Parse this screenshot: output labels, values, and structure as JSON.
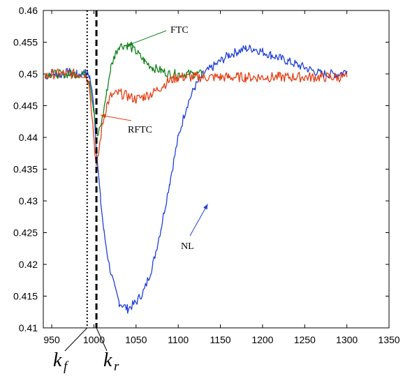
{
  "chart_data": {
    "type": "line",
    "title": "",
    "xlabel": "",
    "ylabel": "",
    "xlim": [
      940,
      1350
    ],
    "ylim": [
      0.41,
      0.46
    ],
    "x_ticks": [
      950,
      1000,
      1050,
      1100,
      1150,
      1200,
      1250,
      1300,
      1350
    ],
    "y_ticks": [
      0.41,
      0.415,
      0.42,
      0.425,
      0.43,
      0.435,
      0.44,
      0.445,
      0.45,
      0.455,
      0.46
    ],
    "x_tick_labels": [
      "950",
      "1000",
      "1050",
      "1100",
      "1150",
      "1200",
      "1250",
      "1300",
      "1350"
    ],
    "y_tick_labels": [
      "0.41",
      "0.415",
      "0.42",
      "0.425",
      "0.43",
      "0.435",
      "0.44",
      "0.445",
      "0.45",
      "0.455",
      "0.46"
    ],
    "grid": false,
    "legend": "none",
    "vlines": [
      {
        "x": 992,
        "style": "dotted",
        "label": "f"
      },
      {
        "x": 1003,
        "style": "dashed",
        "label": "r"
      }
    ],
    "k_base": "k",
    "series": [
      {
        "label": "NL",
        "color": "#1f3fd8",
        "points": [
          [
            942,
            0.4495
          ],
          [
            950,
            0.4502
          ],
          [
            960,
            0.4498
          ],
          [
            970,
            0.4503
          ],
          [
            980,
            0.4499
          ],
          [
            990,
            0.4501
          ],
          [
            995,
            0.4496
          ],
          [
            1000,
            0.445
          ],
          [
            1003,
            0.438
          ],
          [
            1008,
            0.43
          ],
          [
            1012,
            0.425
          ],
          [
            1018,
            0.42
          ],
          [
            1025,
            0.416
          ],
          [
            1030,
            0.414
          ],
          [
            1040,
            0.413
          ],
          [
            1050,
            0.414
          ],
          [
            1060,
            0.416
          ],
          [
            1070,
            0.42
          ],
          [
            1080,
            0.426
          ],
          [
            1090,
            0.433
          ],
          [
            1100,
            0.44
          ],
          [
            1110,
            0.445
          ],
          [
            1120,
            0.448
          ],
          [
            1130,
            0.45
          ],
          [
            1140,
            0.451
          ],
          [
            1150,
            0.452
          ],
          [
            1160,
            0.453
          ],
          [
            1170,
            0.4535
          ],
          [
            1180,
            0.454
          ],
          [
            1190,
            0.454
          ],
          [
            1200,
            0.4535
          ],
          [
            1210,
            0.453
          ],
          [
            1220,
            0.4525
          ],
          [
            1230,
            0.452
          ],
          [
            1240,
            0.4515
          ],
          [
            1250,
            0.451
          ],
          [
            1260,
            0.4505
          ],
          [
            1270,
            0.45
          ],
          [
            1280,
            0.45
          ],
          [
            1290,
            0.45
          ],
          [
            1300,
            0.4505
          ]
        ]
      },
      {
        "label": "FTC",
        "color": "#13821c",
        "points": [
          [
            942,
            0.45
          ],
          [
            950,
            0.45
          ],
          [
            960,
            0.45
          ],
          [
            970,
            0.45
          ],
          [
            980,
            0.45
          ],
          [
            990,
            0.45
          ],
          [
            995,
            0.449
          ],
          [
            1000,
            0.444
          ],
          [
            1004,
            0.44
          ],
          [
            1010,
            0.443
          ],
          [
            1015,
            0.447
          ],
          [
            1020,
            0.451
          ],
          [
            1025,
            0.453
          ],
          [
            1030,
            0.4545
          ],
          [
            1040,
            0.4545
          ],
          [
            1050,
            0.4535
          ],
          [
            1060,
            0.452
          ],
          [
            1070,
            0.451
          ],
          [
            1080,
            0.4505
          ],
          [
            1090,
            0.45
          ],
          [
            1100,
            0.45
          ],
          [
            1110,
            0.45
          ],
          [
            1120,
            0.45
          ],
          [
            1130,
            0.45
          ]
        ]
      },
      {
        "label": "RFTC",
        "color": "#e43d12",
        "points": [
          [
            942,
            0.4495
          ],
          [
            950,
            0.45
          ],
          [
            960,
            0.45
          ],
          [
            970,
            0.45
          ],
          [
            980,
            0.45
          ],
          [
            990,
            0.45
          ],
          [
            995,
            0.448
          ],
          [
            1000,
            0.44
          ],
          [
            1003,
            0.435
          ],
          [
            1006,
            0.438
          ],
          [
            1010,
            0.442
          ],
          [
            1015,
            0.445
          ],
          [
            1020,
            0.4465
          ],
          [
            1030,
            0.447
          ],
          [
            1040,
            0.4465
          ],
          [
            1050,
            0.446
          ],
          [
            1060,
            0.4465
          ],
          [
            1070,
            0.447
          ],
          [
            1080,
            0.448
          ],
          [
            1090,
            0.449
          ],
          [
            1100,
            0.4495
          ],
          [
            1110,
            0.4495
          ],
          [
            1120,
            0.4495
          ],
          [
            1130,
            0.4495
          ],
          [
            1140,
            0.4495
          ],
          [
            1150,
            0.4495
          ],
          [
            1160,
            0.4495
          ],
          [
            1170,
            0.4495
          ],
          [
            1180,
            0.4495
          ],
          [
            1190,
            0.4495
          ],
          [
            1200,
            0.4495
          ],
          [
            1210,
            0.4495
          ],
          [
            1220,
            0.4495
          ],
          [
            1230,
            0.4495
          ],
          [
            1240,
            0.4495
          ],
          [
            1250,
            0.4495
          ],
          [
            1260,
            0.4495
          ],
          [
            1270,
            0.4495
          ],
          [
            1280,
            0.4495
          ],
          [
            1290,
            0.4495
          ],
          [
            1300,
            0.4495
          ]
        ]
      }
    ],
    "annotations": [
      {
        "text": "FTC",
        "series": "FTC",
        "arrow_to": [
          1040,
          0.4545
        ]
      },
      {
        "text": "RFTC",
        "series": "RFTC",
        "arrow_to": [
          1008,
          0.4435
        ]
      },
      {
        "text": "NL",
        "series": "NL",
        "arrow_to": [
          1135,
          0.4295
        ]
      }
    ]
  }
}
